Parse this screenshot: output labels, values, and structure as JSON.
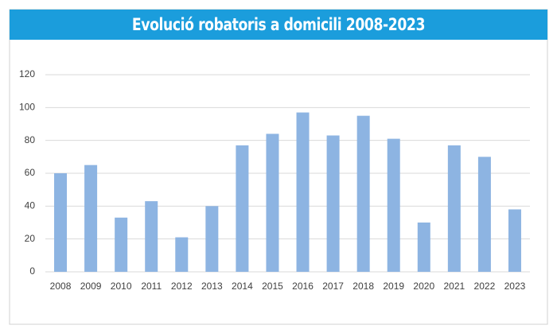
{
  "chart_data": {
    "type": "bar",
    "title": "Evolució robatoris a domicili 2008-2023",
    "categories": [
      "2008",
      "2009",
      "2010",
      "2011",
      "2012",
      "2013",
      "2014",
      "2015",
      "2016",
      "2017",
      "2018",
      "2019",
      "2020",
      "2021",
      "2022",
      "2023"
    ],
    "values": [
      60,
      65,
      33,
      43,
      21,
      40,
      77,
      84,
      97,
      83,
      95,
      81,
      30,
      77,
      70,
      38
    ],
    "color": "#8db4e2",
    "ylim": [
      0,
      120
    ],
    "yticks": [
      0,
      20,
      40,
      60,
      80,
      100,
      120
    ],
    "grid": true
  }
}
